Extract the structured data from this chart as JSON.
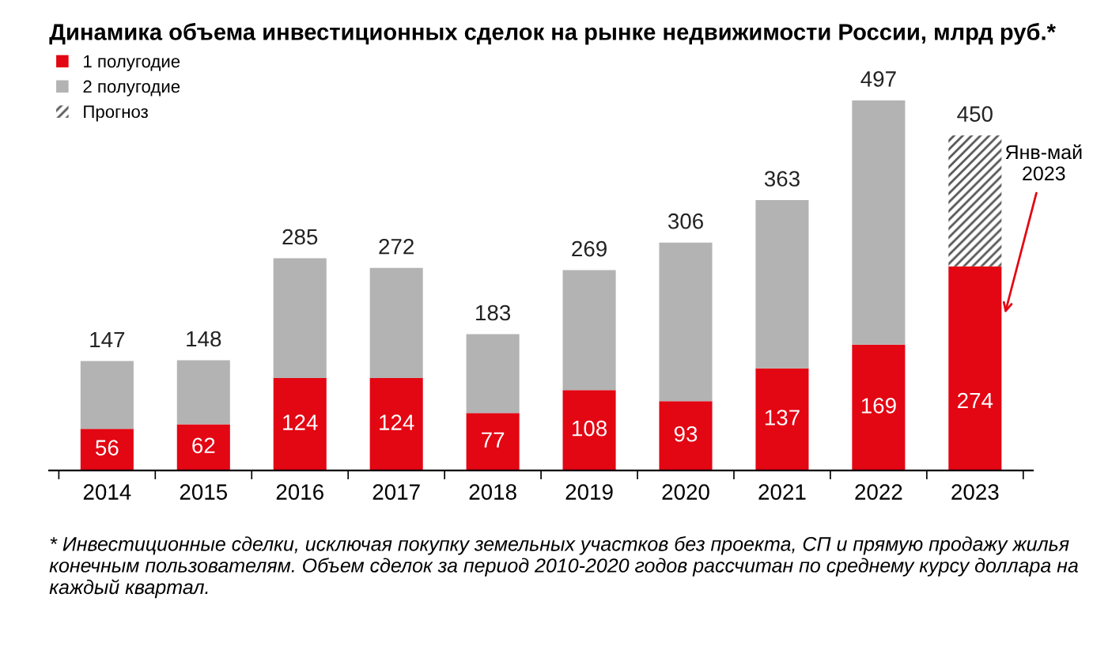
{
  "chart_data": {
    "type": "bar",
    "title": "Динамика объема инвестиционных сделок на рынке недвижимости России, млрд руб.*",
    "categories": [
      "2014",
      "2015",
      "2016",
      "2017",
      "2018",
      "2019",
      "2020",
      "2021",
      "2022",
      "2023"
    ],
    "stacked": true,
    "series": [
      {
        "name": "1 полугодие",
        "color": "#e30613",
        "values": [
          56,
          62,
          124,
          124,
          77,
          108,
          93,
          137,
          169,
          274
        ],
        "value_labels": [
          "56",
          "62",
          "124",
          "124",
          "77",
          "108",
          "93",
          "137",
          "169",
          "274"
        ]
      },
      {
        "name": "2 полугодие",
        "color": "#b3b3b3",
        "values": [
          91,
          86,
          161,
          148,
          106,
          161,
          213,
          226,
          328,
          null
        ]
      },
      {
        "name": "Прогноз",
        "color": "#595959",
        "values": [
          null,
          null,
          null,
          null,
          null,
          null,
          null,
          null,
          null,
          176
        ]
      }
    ],
    "totals": [
      "147",
      "148",
      "285",
      "272",
      "183",
      "269",
      "306",
      "363",
      "497",
      "450"
    ],
    "legend": "top left",
    "grid": false,
    "annotations": [
      "Янв-май\n2023",
      "* Инвестиционные сделки, исключая покупку земельных участков без проекта, СП и прямую продажу жилья конечным пользователям. Объем сделок за период 2010-2020 годов рассчитан по среднему курсу доллара на каждый квартал."
    ]
  }
}
